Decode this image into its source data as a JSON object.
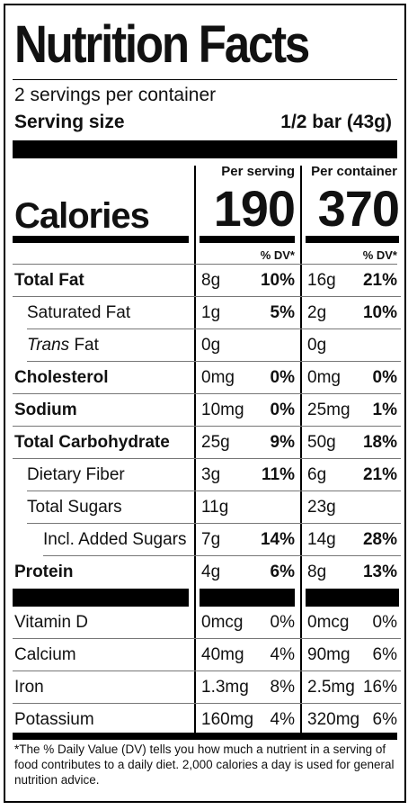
{
  "title": "Nutrition Facts",
  "servings_per_container": "2 servings per container",
  "serving_size_label": "Serving size",
  "serving_size_value": "1/2 bar (43g)",
  "col_headers": {
    "per_serving": "Per serving",
    "per_container": "Per container"
  },
  "calories": {
    "label": "Calories",
    "per_serving": "190",
    "per_container": "370"
  },
  "dv_header": "% DV*",
  "nutrients": [
    {
      "name": "Total Fat",
      "bold": true,
      "indent": 0,
      "serving_amount": "8g",
      "serving_dv": "10%",
      "container_amount": "16g",
      "container_dv": "21%"
    },
    {
      "name": "Saturated Fat",
      "bold": false,
      "indent": 1,
      "serving_amount": "1g",
      "serving_dv": "5%",
      "container_amount": "2g",
      "container_dv": "10%"
    },
    {
      "name": "Trans Fat",
      "italic_prefix": "Trans",
      "name_rest": " Fat",
      "bold": false,
      "indent": 1,
      "serving_amount": "0g",
      "serving_dv": "",
      "container_amount": "0g",
      "container_dv": ""
    },
    {
      "name": "Cholesterol",
      "bold": true,
      "indent": 0,
      "serving_amount": "0mg",
      "serving_dv": "0%",
      "container_amount": "0mg",
      "container_dv": "0%"
    },
    {
      "name": "Sodium",
      "bold": true,
      "indent": 0,
      "serving_amount": "10mg",
      "serving_dv": "0%",
      "container_amount": "25mg",
      "container_dv": "1%"
    },
    {
      "name": "Total Carbohydrate",
      "bold": true,
      "indent": 0,
      "serving_amount": "25g",
      "serving_dv": "9%",
      "container_amount": "50g",
      "container_dv": "18%"
    },
    {
      "name": "Dietary Fiber",
      "bold": false,
      "indent": 1,
      "serving_amount": "3g",
      "serving_dv": "11%",
      "container_amount": "6g",
      "container_dv": "21%"
    },
    {
      "name": "Total Sugars",
      "bold": false,
      "indent": 1,
      "serving_amount": "11g",
      "serving_dv": "",
      "container_amount": "23g",
      "container_dv": ""
    },
    {
      "name": "Incl. Added Sugars",
      "bold": false,
      "indent": 2,
      "serving_amount": "7g",
      "serving_dv": "14%",
      "container_amount": "14g",
      "container_dv": "28%"
    },
    {
      "name": "Protein",
      "bold": true,
      "indent": 0,
      "serving_amount": "4g",
      "serving_dv": "6%",
      "container_amount": "8g",
      "container_dv": "13%"
    }
  ],
  "vitamins": [
    {
      "name": "Vitamin D",
      "serving_amount": "0mcg",
      "serving_dv": "0%",
      "container_amount": "0mcg",
      "container_dv": "0%"
    },
    {
      "name": "Calcium",
      "serving_amount": "40mg",
      "serving_dv": "4%",
      "container_amount": "90mg",
      "container_dv": "6%"
    },
    {
      "name": "Iron",
      "serving_amount": "1.3mg",
      "serving_dv": "8%",
      "container_amount": "2.5mg",
      "container_dv": "16%"
    },
    {
      "name": "Potassium",
      "serving_amount": "160mg",
      "serving_dv": "4%",
      "container_amount": "320mg",
      "container_dv": "6%"
    }
  ],
  "footnote": "*The % Daily Value (DV) tells you how much a nutrient in a serving of food contributes to a daily diet. 2,000 calories a day is used for general nutrition advice."
}
